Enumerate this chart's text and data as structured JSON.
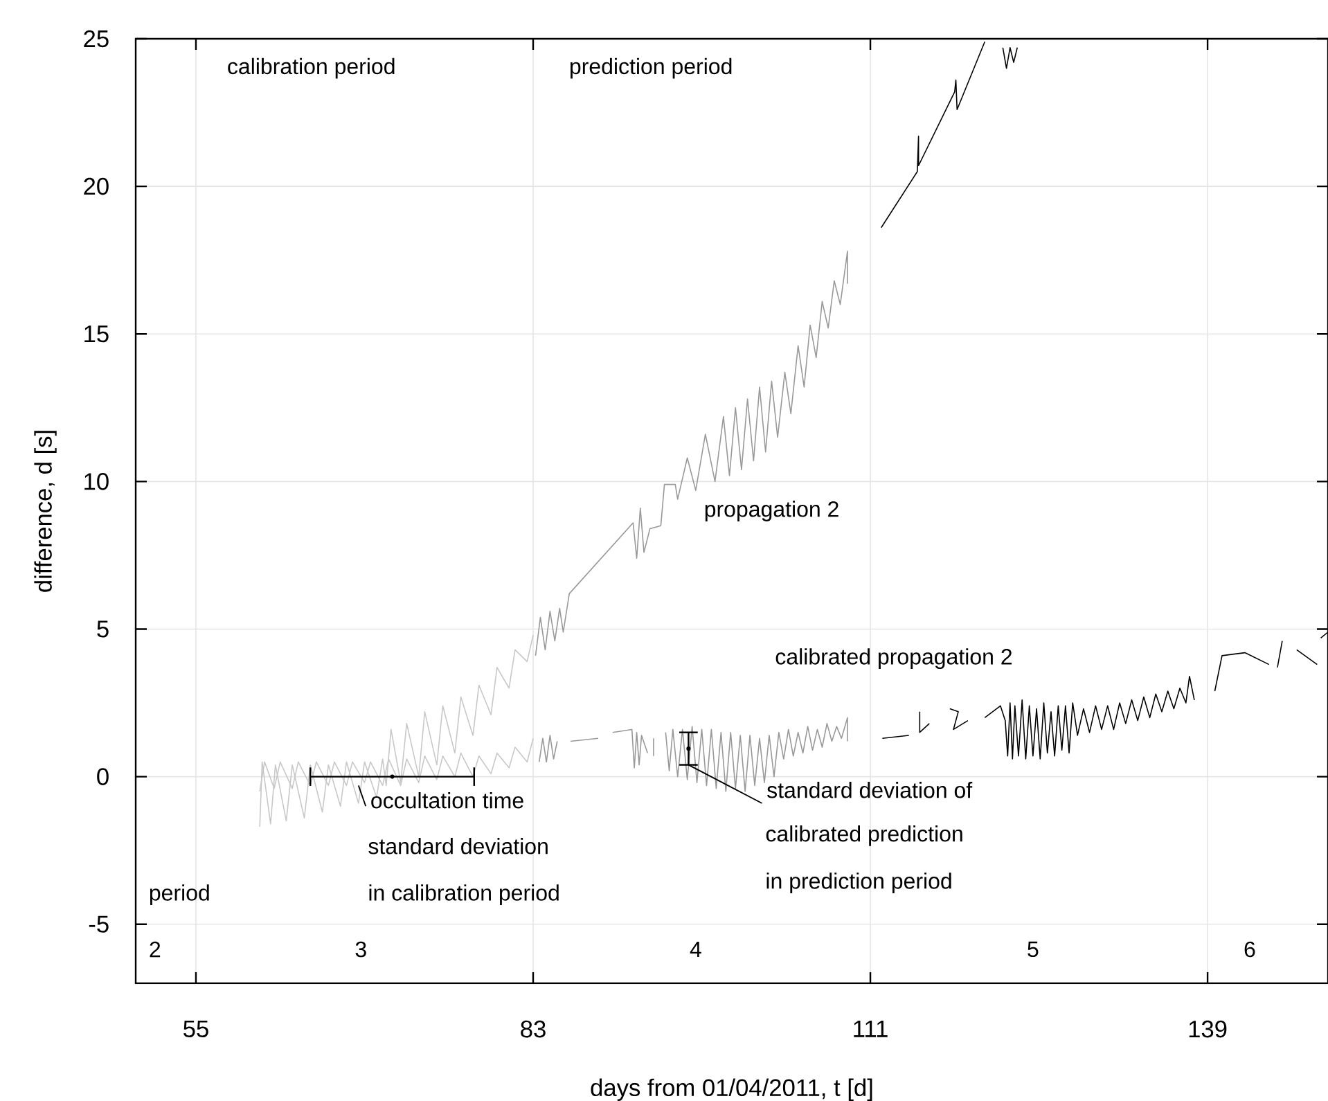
{
  "chart_data": {
    "type": "line",
    "xlabel": "days from 01/04/2011, t [d]",
    "ylabel": "difference, d [s]",
    "xlim": [
      50,
      149
    ],
    "ylim": [
      -7,
      25
    ],
    "xticks": [
      55,
      83,
      111,
      139
    ],
    "yticks": [
      -5,
      0,
      5,
      10,
      15,
      20,
      25
    ],
    "grid": true,
    "marker": "none",
    "line_style": "solid",
    "annotations": [
      "calibration period",
      "prediction period",
      "propagation 2",
      "calibrated propagation 2",
      {
        "text": "occultation time",
        "x": 68.5,
        "y": -0.3
      },
      "standard deviation",
      "in calibration period",
      {
        "text": "standard deviation of",
        "x": 95.9,
        "y": 0.4
      },
      "calibrated prediction",
      "in prediction period",
      "period",
      "2",
      "3",
      "4",
      "5",
      "6"
    ],
    "series": [
      {
        "color": "#c8c8c8",
        "x": [
          60.3,
          60.5,
          61.2,
          61.6,
          62.5,
          63,
          64,
          64.5,
          65.5,
          66,
          67,
          67.5,
          68.5,
          69,
          70,
          70.5,
          70.8,
          71.2,
          72,
          72.5,
          73.5,
          74,
          75,
          75.5,
          76.5,
          77,
          78,
          78.5,
          79.5,
          80,
          81,
          81.5,
          82.5,
          83
        ],
        "values": [
          -1.7,
          0.5,
          -1.6,
          0.4,
          -1.5,
          0.4,
          -1.4,
          0.4,
          -1.2,
          0.4,
          -1.0,
          0.5,
          -0.9,
          0.5,
          -0.7,
          0.6,
          -0.3,
          1.6,
          -0.2,
          1.8,
          0.0,
          2.2,
          0.4,
          2.4,
          0.8,
          2.7,
          1.4,
          3.1,
          2.1,
          3.7,
          3.0,
          4.3,
          3.9,
          4.8
        ]
      },
      {
        "color": "#999999",
        "x": [
          83.2,
          83.6,
          84,
          84.4,
          84.8,
          85.2,
          85.5,
          86,
          91.3,
          91.6,
          91.9,
          92.2,
          92.7,
          93.6,
          93.9,
          94.8,
          95,
          95.8,
          96.5,
          97.3,
          98.1,
          98.8,
          99.3,
          99.8,
          100.3,
          100.8,
          101.3,
          101.8,
          102.3,
          102.8,
          103.3,
          103.9,
          104.4,
          105,
          105.5,
          106,
          106.5,
          107,
          107.5,
          108,
          108.5,
          109.1,
          109.1
        ],
        "values": [
          4.1,
          5.4,
          4.3,
          5.6,
          4.6,
          5.7,
          4.9,
          6.2,
          8.6,
          7.4,
          9.1,
          7.6,
          8.4,
          8.5,
          9.9,
          9.9,
          9.4,
          10.8,
          9.7,
          11.6,
          10.0,
          12.2,
          10.2,
          12.5,
          10.4,
          12.8,
          10.7,
          13.2,
          11.0,
          13.4,
          11.5,
          13.7,
          12.3,
          14.6,
          13.2,
          15.3,
          14.2,
          16.1,
          15.2,
          16.8,
          16.0,
          17.8,
          16.7
        ]
      },
      {
        "color": "#000000",
        "x": [
          111.9,
          114.9,
          115.0,
          115.0,
          118.0,
          118.1,
          118.2,
          120.5,
          121.2,
          122.0,
          122.3,
          122.6,
          122.9,
          123.2
        ],
        "values": [
          18.6,
          20.5,
          21.7,
          20.7,
          23.2,
          23.6,
          22.6,
          24.9,
          null,
          24.7,
          24.0,
          24.7,
          24.2,
          24.7
        ]
      },
      {
        "color": "#c8c8c8",
        "x": [
          60.3,
          60.7,
          61.5,
          62,
          63,
          63.5,
          64.5,
          65,
          66,
          66.5,
          67.5,
          68,
          69,
          69.5,
          70.5,
          71,
          72,
          72.5,
          73.5,
          74,
          75,
          75.5,
          76.5,
          77,
          78,
          78.5,
          79.5,
          80,
          81,
          81.5,
          82.5,
          83
        ],
        "values": [
          -0.5,
          0.5,
          -0.4,
          0.5,
          -0.4,
          0.5,
          -0.3,
          0.5,
          -0.3,
          0.5,
          -0.3,
          0.5,
          -0.2,
          0.5,
          -0.3,
          0.6,
          -0.3,
          0.6,
          -0.2,
          0.7,
          -0.1,
          0.7,
          0.0,
          0.8,
          0.0,
          0.7,
          0.1,
          0.8,
          0.3,
          1.0,
          0.5,
          1.3
        ]
      },
      {
        "color": "#999999",
        "x": [
          83.5,
          83.8,
          84.1,
          84.4,
          84.7,
          85.0,
          85.5,
          86.1,
          88.4,
          89.0,
          89.6,
          91.2,
          91.4,
          91.6,
          91.8,
          92.0,
          92.5,
          92.8,
          93.0,
          93.0,
          93.5,
          94.0,
          94.3,
          94.6,
          95.0,
          95.4,
          95.8,
          96.2,
          96.6,
          97.0,
          97.4,
          97.8,
          98.2,
          98.6,
          99.0,
          99.4,
          99.8,
          100.2,
          100.6,
          101.0,
          101.4,
          101.8,
          102.2,
          102.6,
          103.0,
          103.4,
          103.8,
          104.2,
          104.6,
          105.0,
          105.4,
          105.8,
          106.2,
          106.6,
          107.0,
          107.4,
          107.8,
          108.2,
          108.6,
          109.1,
          109.1
        ],
        "values": [
          0.5,
          1.3,
          0.5,
          1.4,
          0.6,
          1.2,
          null,
          1.2,
          1.3,
          null,
          1.5,
          1.6,
          0.3,
          1.5,
          0.4,
          1.4,
          0.8,
          null,
          0.7,
          1.3,
          null,
          1.5,
          0.2,
          1.6,
          0.0,
          1.6,
          -0.1,
          1.7,
          -0.2,
          1.6,
          -0.3,
          1.6,
          -0.4,
          1.5,
          -0.5,
          1.5,
          -0.4,
          1.4,
          -0.5,
          1.4,
          -0.3,
          1.3,
          -0.2,
          1.4,
          0.0,
          1.5,
          0.6,
          1.6,
          0.7,
          1.5,
          0.8,
          1.7,
          0.9,
          1.6,
          1.0,
          1.8,
          1.2,
          1.7,
          1.3,
          2.0,
          1.2
        ]
      },
      {
        "color": "#000000",
        "x": [
          112.0,
          114.2,
          114.6,
          115.1,
          115.1,
          115.9,
          116.8,
          117.6,
          118.3,
          117.9,
          119.1,
          119.8,
          120.5,
          121.8,
          122.2,
          122.4,
          122.6,
          122.8,
          123.0,
          123.3,
          123.6,
          123.9,
          124.2,
          124.5,
          124.8,
          125.1,
          125.4,
          125.7,
          126.0,
          126.3,
          126.6,
          126.9,
          127.2,
          127.5,
          127.8,
          128.2,
          128.7,
          129.2,
          129.7,
          130.2,
          130.7,
          131.2,
          131.7,
          132.2,
          132.7,
          133.2,
          133.7,
          134.2,
          134.7,
          135.2,
          135.7,
          136.2,
          136.7,
          137.2,
          137.5,
          137.9,
          138.5,
          139.6,
          140.2,
          142.1,
          144.1,
          144.4,
          144.8,
          145.2,
          145.8,
          146.4,
          148.1,
          148.3,
          148.4,
          149
        ],
        "values": [
          1.3,
          1.4,
          null,
          2.2,
          1.5,
          1.8,
          null,
          2.3,
          2.2,
          1.6,
          1.9,
          null,
          2.0,
          2.4,
          1.9,
          0.7,
          2.5,
          0.6,
          2.4,
          0.7,
          2.6,
          0.6,
          2.4,
          0.7,
          2.3,
          0.6,
          2.5,
          0.8,
          2.2,
          0.7,
          2.4,
          0.9,
          2.4,
          0.8,
          2.5,
          1.4,
          2.3,
          1.5,
          2.4,
          1.6,
          2.4,
          1.6,
          2.5,
          1.8,
          2.6,
          1.9,
          2.7,
          2.0,
          2.8,
          2.2,
          2.9,
          2.3,
          3.0,
          2.5,
          3.4,
          2.6,
          null,
          2.9,
          4.1,
          4.2,
          3.8,
          null,
          3.7,
          4.6,
          null,
          4.3,
          3.8,
          null,
          4.7,
          4.9
        ]
      },
      {
        "type": "scatter",
        "marker": "circle",
        "color": "#000000",
        "x": [
          71.3
        ],
        "values": [
          0
        ],
        "xerrors": [
          6.8
        ]
      },
      {
        "type": "scatter",
        "marker": "circle",
        "color": "#000000",
        "x": [
          95.9
        ],
        "values": [
          0.95
        ],
        "errors": [
          0.55
        ]
      }
    ]
  }
}
